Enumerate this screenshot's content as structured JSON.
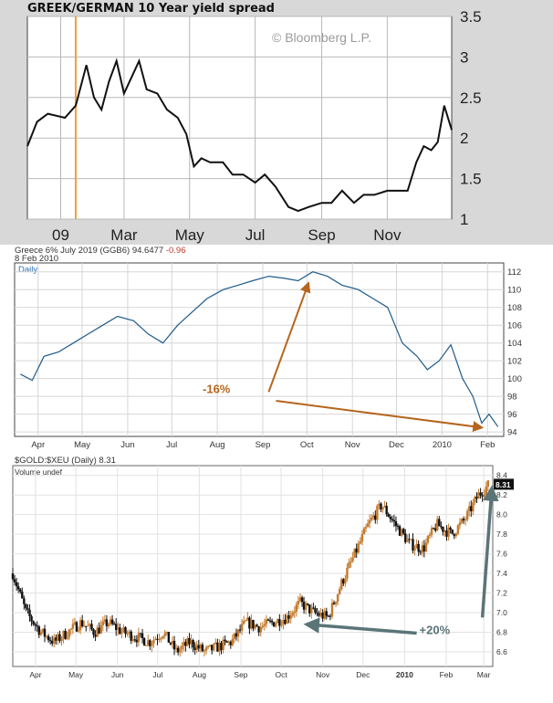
{
  "chart_data": [
    {
      "type": "line",
      "title": "GREEK/GERMAN 10 Year yield spread",
      "watermark": "© Bloomberg L.P.",
      "x_ticks": [
        "09",
        "Mar",
        "May",
        "Jul",
        "Sep",
        "Nov"
      ],
      "y_ticks": [
        "3.5",
        "3",
        "2.5",
        "2",
        "1.5",
        "1"
      ],
      "ylim": [
        1,
        3.5
      ],
      "grid": true,
      "highlight_color": "#f0a040",
      "x": [
        "2008-12-01",
        "2008-12-10",
        "2008-12-20",
        "2009-01-05",
        "2009-01-15",
        "2009-01-25",
        "2009-02-01",
        "2009-02-08",
        "2009-02-15",
        "2009-02-22",
        "2009-03-01",
        "2009-03-08",
        "2009-03-15",
        "2009-03-22",
        "2009-04-01",
        "2009-04-10",
        "2009-04-20",
        "2009-04-28",
        "2009-05-05",
        "2009-05-12",
        "2009-05-20",
        "2009-06-01",
        "2009-06-10",
        "2009-06-20",
        "2009-07-01",
        "2009-07-10",
        "2009-07-20",
        "2009-08-01",
        "2009-08-10",
        "2009-08-20",
        "2009-09-01",
        "2009-09-10",
        "2009-09-20",
        "2009-10-01",
        "2009-10-10",
        "2009-10-20",
        "2009-11-01",
        "2009-11-10",
        "2009-11-20",
        "2009-11-28",
        "2009-12-05",
        "2009-12-12",
        "2009-12-18",
        "2009-12-24",
        "2009-12-31"
      ],
      "y": [
        1.9,
        2.2,
        2.3,
        2.25,
        2.4,
        2.9,
        2.5,
        2.35,
        2.7,
        2.95,
        2.55,
        2.75,
        2.95,
        2.6,
        2.55,
        2.35,
        2.25,
        2.05,
        1.65,
        1.75,
        1.7,
        1.7,
        1.55,
        1.55,
        1.45,
        1.55,
        1.4,
        1.15,
        1.1,
        1.15,
        1.2,
        1.2,
        1.35,
        1.2,
        1.3,
        1.3,
        1.35,
        1.35,
        1.35,
        1.7,
        1.9,
        1.85,
        1.95,
        2.4,
        2.1
      ]
    },
    {
      "type": "line",
      "title": "Greece 6% July 2019 (GGB6) 94.6477",
      "change": "-0.96",
      "date": "8 Feb 2010",
      "period": "Daily",
      "line_color": "#1f5b8a",
      "annotation_color": "#b5651d",
      "annotations": [
        "-16%"
      ],
      "x_ticks": [
        "Apr",
        "May",
        "Jun",
        "Jul",
        "Aug",
        "Sep",
        "Oct",
        "Nov",
        "Dec",
        "2010",
        "Feb"
      ],
      "y_ticks": [
        "112",
        "110",
        "108",
        "106",
        "104",
        "102",
        "100",
        "98",
        "96",
        "94"
      ],
      "ylim": [
        93.5,
        113
      ],
      "x": [
        "2009-03-20",
        "2009-03-28",
        "2009-04-05",
        "2009-04-15",
        "2009-04-25",
        "2009-05-05",
        "2009-05-15",
        "2009-05-25",
        "2009-06-05",
        "2009-06-15",
        "2009-06-25",
        "2009-07-05",
        "2009-07-15",
        "2009-07-25",
        "2009-08-05",
        "2009-08-15",
        "2009-08-25",
        "2009-09-05",
        "2009-09-15",
        "2009-09-25",
        "2009-10-05",
        "2009-10-15",
        "2009-10-25",
        "2009-11-05",
        "2009-11-15",
        "2009-11-25",
        "2009-12-05",
        "2009-12-15",
        "2009-12-22",
        "2009-12-30",
        "2010-01-07",
        "2010-01-15",
        "2010-01-22",
        "2010-01-28",
        "2010-02-02",
        "2010-02-08"
      ],
      "y": [
        100.5,
        99.8,
        102.5,
        103.0,
        104.0,
        105.0,
        106.0,
        107.0,
        106.5,
        105.0,
        104.0,
        106.0,
        107.5,
        109.0,
        110.0,
        110.5,
        111.0,
        111.5,
        111.3,
        111.0,
        112.0,
        111.5,
        110.5,
        110.0,
        109.0,
        108.0,
        104.0,
        102.5,
        101.0,
        102.0,
        103.8,
        100.0,
        98.0,
        95.0,
        96.0,
        94.6
      ]
    },
    {
      "type": "bar",
      "subtype": "candlestick",
      "title": "$GOLD:$XEU (Daily) 8.31",
      "legend": "Volume undef",
      "last_value": "8.31",
      "up_color": "#c47a2c",
      "down_color": "#111111",
      "arrow_color": "#5b7478",
      "annotations": [
        "+20%"
      ],
      "x_ticks": [
        "Apr",
        "May",
        "Jun",
        "Jul",
        "Aug",
        "Sep",
        "Oct",
        "Nov",
        "Dec",
        "2010",
        "Feb",
        "Mar"
      ],
      "y_ticks": [
        "8.4",
        "8.2",
        "8.0",
        "7.8",
        "7.6",
        "7.4",
        "7.2",
        "7.0",
        "6.8",
        "6.6"
      ],
      "ylim": [
        6.45,
        8.5
      ],
      "x": [
        "2009-03-15",
        "2009-03-25",
        "2009-04-05",
        "2009-04-15",
        "2009-04-25",
        "2009-05-05",
        "2009-05-15",
        "2009-05-25",
        "2009-06-05",
        "2009-06-15",
        "2009-06-25",
        "2009-07-05",
        "2009-07-15",
        "2009-07-25",
        "2009-08-05",
        "2009-08-15",
        "2009-08-25",
        "2009-09-05",
        "2009-09-15",
        "2009-09-25",
        "2009-10-05",
        "2009-10-15",
        "2009-10-25",
        "2009-11-05",
        "2009-11-15",
        "2009-11-25",
        "2009-12-05",
        "2009-12-15",
        "2009-12-25",
        "2010-01-05",
        "2010-01-15",
        "2010-01-25",
        "2010-02-05",
        "2010-02-15",
        "2010-02-25",
        "2010-03-05"
      ],
      "y": [
        7.4,
        7.0,
        6.8,
        6.7,
        6.8,
        6.9,
        6.8,
        6.9,
        6.8,
        6.75,
        6.7,
        6.8,
        6.6,
        6.7,
        6.6,
        6.65,
        6.7,
        6.9,
        6.85,
        6.9,
        6.95,
        7.1,
        7.0,
        6.95,
        7.3,
        7.6,
        7.9,
        8.1,
        7.9,
        7.7,
        7.65,
        7.9,
        7.8,
        7.95,
        8.2,
        8.31
      ]
    }
  ]
}
